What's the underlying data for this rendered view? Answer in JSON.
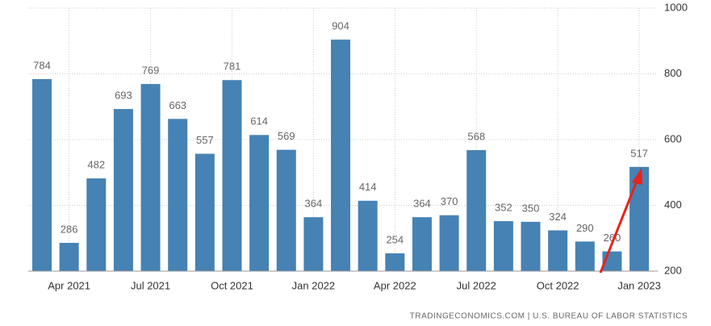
{
  "chart_data": {
    "type": "bar",
    "categories": [
      null,
      "Apr 2021",
      null,
      null,
      "Jul 2021",
      null,
      null,
      "Oct 2021",
      null,
      null,
      "Jan 2022",
      null,
      null,
      "Apr 2022",
      null,
      null,
      "Jul 2022",
      null,
      null,
      "Oct 2022",
      null,
      null,
      "Jan 2023"
    ],
    "values": [
      784,
      286,
      482,
      693,
      769,
      663,
      557,
      781,
      614,
      569,
      364,
      904,
      414,
      254,
      364,
      370,
      568,
      352,
      350,
      324,
      290,
      260,
      517
    ],
    "color": "#4682b4",
    "ylim": [
      200,
      1000
    ],
    "yticks": [
      200,
      400,
      600,
      800,
      1000
    ],
    "grid": true,
    "source": "TRADINGECONOMICS.COM | U.S. BUREAU OF LABOR STATISTICS"
  }
}
